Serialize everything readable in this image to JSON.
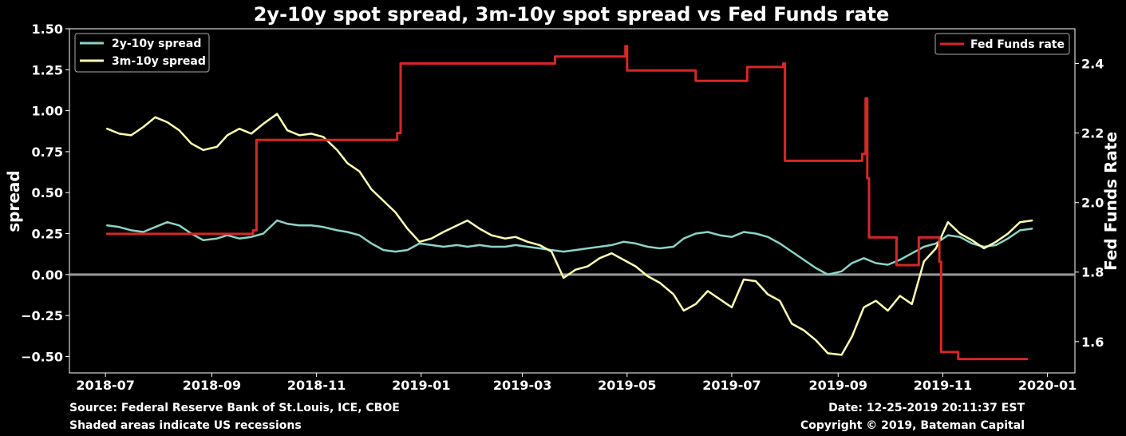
{
  "chart_data": {
    "type": "line",
    "title": "2y-10y spot spread, 3m-10y spot spread vs Fed Funds rate",
    "ylabel": "spread",
    "ylabel_right": "Fed Funds Rate",
    "ylim": [
      -0.6,
      1.5
    ],
    "ylim_right": [
      1.51,
      2.5
    ],
    "xlim": [
      "2018-06-10",
      "2020-01-17"
    ],
    "x_ticks": [
      "2018-07-01",
      "2018-09-01",
      "2018-11-01",
      "2019-01-01",
      "2019-03-01",
      "2019-05-01",
      "2019-07-01",
      "2019-09-01",
      "2019-11-01",
      "2020-01-01"
    ],
    "x_tick_labels": [
      "2018-07",
      "2018-09",
      "2018-11",
      "2019-01",
      "2019-03",
      "2019-05",
      "2019-07",
      "2019-09",
      "2019-11",
      "2020-01"
    ],
    "y_ticks": [
      1.5,
      1.25,
      1.0,
      0.75,
      0.5,
      0.25,
      0.0,
      -0.25,
      -0.5
    ],
    "y_tick_labels": [
      "1.50",
      "1.25",
      "1.00",
      "0.75",
      "0.50",
      "0.25",
      "0.00",
      "−0.25",
      "−0.50"
    ],
    "y_ticks_right": [
      2.4,
      2.2,
      2.0,
      1.8,
      1.6
    ],
    "y_tick_labels_right": [
      "2.4",
      "2.2",
      "2.0",
      "1.8",
      "1.6"
    ],
    "zero_line": 0,
    "legend_left": "top-left",
    "legend_right": "top-right",
    "grid": false,
    "series": [
      {
        "name": "2y-10y spread",
        "axis": "left",
        "color": "#8dd3c7",
        "points": [
          [
            "2018-07-02",
            0.3
          ],
          [
            "2018-07-09",
            0.29
          ],
          [
            "2018-07-16",
            0.27
          ],
          [
            "2018-07-23",
            0.26
          ],
          [
            "2018-07-30",
            0.29
          ],
          [
            "2018-08-06",
            0.32
          ],
          [
            "2018-08-13",
            0.3
          ],
          [
            "2018-08-20",
            0.25
          ],
          [
            "2018-08-27",
            0.21
          ],
          [
            "2018-09-04",
            0.22
          ],
          [
            "2018-09-10",
            0.24
          ],
          [
            "2018-09-17",
            0.22
          ],
          [
            "2018-09-24",
            0.23
          ],
          [
            "2018-10-01",
            0.25
          ],
          [
            "2018-10-09",
            0.33
          ],
          [
            "2018-10-15",
            0.31
          ],
          [
            "2018-10-22",
            0.3
          ],
          [
            "2018-10-29",
            0.3
          ],
          [
            "2018-11-05",
            0.29
          ],
          [
            "2018-11-13",
            0.27
          ],
          [
            "2018-11-19",
            0.26
          ],
          [
            "2018-11-26",
            0.24
          ],
          [
            "2018-12-03",
            0.19
          ],
          [
            "2018-12-10",
            0.15
          ],
          [
            "2018-12-17",
            0.14
          ],
          [
            "2018-12-24",
            0.15
          ],
          [
            "2018-12-31",
            0.19
          ],
          [
            "2019-01-07",
            0.18
          ],
          [
            "2019-01-14",
            0.17
          ],
          [
            "2019-01-22",
            0.18
          ],
          [
            "2019-01-28",
            0.17
          ],
          [
            "2019-02-04",
            0.18
          ],
          [
            "2019-02-11",
            0.17
          ],
          [
            "2019-02-19",
            0.17
          ],
          [
            "2019-02-25",
            0.18
          ],
          [
            "2019-03-04",
            0.17
          ],
          [
            "2019-03-11",
            0.16
          ],
          [
            "2019-03-18",
            0.15
          ],
          [
            "2019-03-25",
            0.14
          ],
          [
            "2019-04-01",
            0.15
          ],
          [
            "2019-04-08",
            0.16
          ],
          [
            "2019-04-15",
            0.17
          ],
          [
            "2019-04-22",
            0.18
          ],
          [
            "2019-04-29",
            0.2
          ],
          [
            "2019-05-06",
            0.19
          ],
          [
            "2019-05-13",
            0.17
          ],
          [
            "2019-05-20",
            0.16
          ],
          [
            "2019-05-28",
            0.17
          ],
          [
            "2019-06-03",
            0.22
          ],
          [
            "2019-06-10",
            0.25
          ],
          [
            "2019-06-17",
            0.26
          ],
          [
            "2019-06-24",
            0.24
          ],
          [
            "2019-07-01",
            0.23
          ],
          [
            "2019-07-08",
            0.26
          ],
          [
            "2019-07-15",
            0.25
          ],
          [
            "2019-07-22",
            0.23
          ],
          [
            "2019-07-29",
            0.19
          ],
          [
            "2019-08-05",
            0.14
          ],
          [
            "2019-08-12",
            0.09
          ],
          [
            "2019-08-19",
            0.04
          ],
          [
            "2019-08-26",
            0.0
          ],
          [
            "2019-09-03",
            0.02
          ],
          [
            "2019-09-09",
            0.07
          ],
          [
            "2019-09-16",
            0.1
          ],
          [
            "2019-09-23",
            0.07
          ],
          [
            "2019-09-30",
            0.06
          ],
          [
            "2019-10-07",
            0.09
          ],
          [
            "2019-10-14",
            0.13
          ],
          [
            "2019-10-21",
            0.17
          ],
          [
            "2019-10-28",
            0.19
          ],
          [
            "2019-11-04",
            0.24
          ],
          [
            "2019-11-11",
            0.23
          ],
          [
            "2019-11-18",
            0.19
          ],
          [
            "2019-11-25",
            0.17
          ],
          [
            "2019-12-02",
            0.18
          ],
          [
            "2019-12-09",
            0.22
          ],
          [
            "2019-12-16",
            0.27
          ],
          [
            "2019-12-23",
            0.28
          ]
        ]
      },
      {
        "name": "3m-10y spread",
        "axis": "left",
        "color": "#ffffb3",
        "points": [
          [
            "2018-07-02",
            0.89
          ],
          [
            "2018-07-09",
            0.86
          ],
          [
            "2018-07-16",
            0.85
          ],
          [
            "2018-07-23",
            0.9
          ],
          [
            "2018-07-30",
            0.96
          ],
          [
            "2018-08-06",
            0.93
          ],
          [
            "2018-08-13",
            0.88
          ],
          [
            "2018-08-20",
            0.8
          ],
          [
            "2018-08-27",
            0.76
          ],
          [
            "2018-09-04",
            0.78
          ],
          [
            "2018-09-10",
            0.85
          ],
          [
            "2018-09-17",
            0.89
          ],
          [
            "2018-09-24",
            0.86
          ],
          [
            "2018-10-01",
            0.92
          ],
          [
            "2018-10-09",
            0.98
          ],
          [
            "2018-10-15",
            0.88
          ],
          [
            "2018-10-22",
            0.85
          ],
          [
            "2018-10-29",
            0.86
          ],
          [
            "2018-11-05",
            0.84
          ],
          [
            "2018-11-13",
            0.76
          ],
          [
            "2018-11-19",
            0.68
          ],
          [
            "2018-11-26",
            0.63
          ],
          [
            "2018-12-03",
            0.52
          ],
          [
            "2018-12-10",
            0.45
          ],
          [
            "2018-12-17",
            0.38
          ],
          [
            "2018-12-24",
            0.28
          ],
          [
            "2018-12-31",
            0.2
          ],
          [
            "2019-01-07",
            0.22
          ],
          [
            "2019-01-14",
            0.26
          ],
          [
            "2019-01-22",
            0.3
          ],
          [
            "2019-01-28",
            0.33
          ],
          [
            "2019-02-04",
            0.28
          ],
          [
            "2019-02-11",
            0.24
          ],
          [
            "2019-02-19",
            0.22
          ],
          [
            "2019-02-25",
            0.23
          ],
          [
            "2019-03-04",
            0.2
          ],
          [
            "2019-03-11",
            0.18
          ],
          [
            "2019-03-18",
            0.14
          ],
          [
            "2019-03-25",
            -0.02
          ],
          [
            "2019-04-01",
            0.03
          ],
          [
            "2019-04-08",
            0.05
          ],
          [
            "2019-04-15",
            0.1
          ],
          [
            "2019-04-22",
            0.13
          ],
          [
            "2019-04-29",
            0.09
          ],
          [
            "2019-05-06",
            0.05
          ],
          [
            "2019-05-13",
            -0.01
          ],
          [
            "2019-05-20",
            -0.05
          ],
          [
            "2019-05-28",
            -0.12
          ],
          [
            "2019-06-03",
            -0.22
          ],
          [
            "2019-06-10",
            -0.18
          ],
          [
            "2019-06-17",
            -0.1
          ],
          [
            "2019-06-24",
            -0.15
          ],
          [
            "2019-07-01",
            -0.2
          ],
          [
            "2019-07-08",
            -0.03
          ],
          [
            "2019-07-15",
            -0.04
          ],
          [
            "2019-07-22",
            -0.12
          ],
          [
            "2019-07-29",
            -0.16
          ],
          [
            "2019-08-05",
            -0.3
          ],
          [
            "2019-08-12",
            -0.34
          ],
          [
            "2019-08-19",
            -0.4
          ],
          [
            "2019-08-26",
            -0.48
          ],
          [
            "2019-09-03",
            -0.49
          ],
          [
            "2019-09-09",
            -0.38
          ],
          [
            "2019-09-16",
            -0.2
          ],
          [
            "2019-09-23",
            -0.16
          ],
          [
            "2019-09-30",
            -0.22
          ],
          [
            "2019-10-07",
            -0.13
          ],
          [
            "2019-10-14",
            -0.18
          ],
          [
            "2019-10-21",
            0.08
          ],
          [
            "2019-10-28",
            0.16
          ],
          [
            "2019-11-04",
            0.32
          ],
          [
            "2019-11-11",
            0.25
          ],
          [
            "2019-11-18",
            0.21
          ],
          [
            "2019-11-25",
            0.16
          ],
          [
            "2019-12-02",
            0.2
          ],
          [
            "2019-12-09",
            0.25
          ],
          [
            "2019-12-16",
            0.32
          ],
          [
            "2019-12-23",
            0.33
          ]
        ]
      },
      {
        "name": "Fed Funds rate",
        "axis": "right",
        "color": "#d62728",
        "points": [
          [
            "2018-07-02",
            1.91
          ],
          [
            "2018-09-25",
            1.92
          ],
          [
            "2018-09-27",
            2.18
          ],
          [
            "2018-12-18",
            2.2
          ],
          [
            "2018-12-20",
            2.4
          ],
          [
            "2019-03-20",
            2.42
          ],
          [
            "2019-04-30",
            2.45
          ],
          [
            "2019-05-01",
            2.38
          ],
          [
            "2019-06-10",
            2.35
          ],
          [
            "2019-07-10",
            2.39
          ],
          [
            "2019-07-31",
            2.4
          ],
          [
            "2019-08-01",
            2.12
          ],
          [
            "2019-09-15",
            2.14
          ],
          [
            "2019-09-17",
            2.3
          ],
          [
            "2019-09-18",
            2.07
          ],
          [
            "2019-09-19",
            1.9
          ],
          [
            "2019-09-30",
            1.9
          ],
          [
            "2019-10-05",
            1.82
          ],
          [
            "2019-10-18",
            1.9
          ],
          [
            "2019-10-30",
            1.83
          ],
          [
            "2019-10-31",
            1.57
          ],
          [
            "2019-11-10",
            1.55
          ],
          [
            "2019-12-20",
            1.55
          ]
        ]
      }
    ]
  },
  "footer": {
    "source": "Source: Federal Reserve Bank of St.Louis, ICE, CBOE",
    "shaded": "Shaded areas indicate US recessions",
    "date": "Date: 12-25-2019 20:11:37 EST",
    "copyright": "Copyright © 2019, Bateman Capital"
  }
}
